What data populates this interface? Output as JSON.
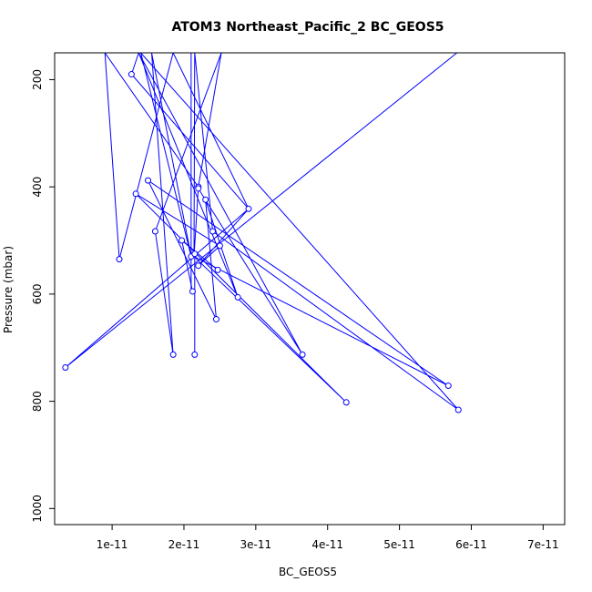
{
  "chart_data": {
    "type": "line",
    "title": "ATOM3 Northeast_Pacific_2 BC_GEOS5",
    "xlabel": "BC_GEOS5",
    "ylabel": "Pressure (mbar)",
    "xlim": [
      2e-12,
      7.3e-11
    ],
    "ylim": [
      1030,
      150
    ],
    "y_reversed": true,
    "grid": false,
    "color": "#0000ff",
    "x_ticks": [
      {
        "value": 1e-11,
        "label": "1e-11"
      },
      {
        "value": 2e-11,
        "label": "2e-11"
      },
      {
        "value": 3e-11,
        "label": "3e-11"
      },
      {
        "value": 4e-11,
        "label": "4e-11"
      },
      {
        "value": 5e-11,
        "label": "5e-11"
      },
      {
        "value": 6e-11,
        "label": "6e-11"
      },
      {
        "value": 7e-11,
        "label": "7e-11"
      }
    ],
    "y_ticks": [
      {
        "value": 200,
        "label": "200"
      },
      {
        "value": 400,
        "label": "400"
      },
      {
        "value": 600,
        "label": "600"
      },
      {
        "value": 800,
        "label": "800"
      },
      {
        "value": 1000,
        "label": "1000"
      }
    ],
    "points": [
      {
        "x": 1.27e-11,
        "y": 190
      },
      {
        "x": 2.9e-11,
        "y": 441
      },
      {
        "x": 1.1e-11,
        "y": 535
      },
      {
        "x": 2.2e-11,
        "y": 400
      },
      {
        "x": 3.65e-11,
        "y": 713
      },
      {
        "x": 1.6e-11,
        "y": 483
      },
      {
        "x": 1.85e-11,
        "y": 713
      },
      {
        "x": 2.1e-11,
        "y": 530
      },
      {
        "x": 5.82e-11,
        "y": 816
      },
      {
        "x": 2.4e-11,
        "y": 483
      },
      {
        "x": 5.68e-11,
        "y": 771
      },
      {
        "x": 1.5e-11,
        "y": 388
      },
      {
        "x": 2.45e-11,
        "y": 647
      },
      {
        "x": 2.3e-11,
        "y": 424
      },
      {
        "x": 2.75e-11,
        "y": 606
      },
      {
        "x": 2.2e-11,
        "y": 403
      },
      {
        "x": 4.26e-11,
        "y": 802
      },
      {
        "x": 1.33e-11,
        "y": 413
      },
      {
        "x": 2.5e-11,
        "y": 510
      },
      {
        "x": 2.2e-11,
        "y": 547
      },
      {
        "x": 3.5e-12,
        "y": 737
      },
      {
        "x": 2.15e-11,
        "y": 713
      },
      {
        "x": 2.12e-11,
        "y": 595
      },
      {
        "x": 2.47e-11,
        "y": 555
      },
      {
        "x": 1.97e-11,
        "y": 500
      },
      {
        "x": 2.15e-11,
        "y": 525
      }
    ],
    "path": [
      [
        1.37e-11,
        150
      ],
      [
        1.27e-11,
        190
      ],
      [
        2.9e-11,
        441
      ],
      [
        1.85e-11,
        150
      ],
      [
        1.1e-11,
        535
      ],
      [
        9e-12,
        150
      ],
      [
        2.2e-11,
        400
      ],
      [
        2.52e-11,
        150
      ],
      [
        1.6e-11,
        483
      ],
      [
        1.85e-11,
        713
      ],
      [
        1.55e-11,
        150
      ],
      [
        2.1e-11,
        530
      ],
      [
        1.4e-11,
        150
      ],
      [
        5.82e-11,
        816
      ],
      [
        2.4e-11,
        483
      ],
      [
        2.15e-11,
        150
      ],
      [
        2.14e-11,
        530
      ],
      [
        5.68e-11,
        771
      ],
      [
        1.5e-11,
        388
      ],
      [
        2.45e-11,
        647
      ],
      [
        2.3e-11,
        424
      ],
      [
        2.75e-11,
        606
      ],
      [
        1.37e-11,
        150
      ],
      [
        3.65e-11,
        713
      ],
      [
        2.2e-11,
        403
      ],
      [
        2.14e-11,
        530
      ],
      [
        4.26e-11,
        802
      ],
      [
        1.33e-11,
        413
      ],
      [
        2.5e-11,
        510
      ],
      [
        2.2e-11,
        547
      ],
      [
        2.9e-11,
        441
      ],
      [
        3.5e-12,
        737
      ],
      [
        5.8e-11,
        150
      ]
    ],
    "extra_segments": [
      [
        [
          2.1e-11,
          150
        ],
        [
          2.1e-11,
          595
        ]
      ],
      [
        [
          2.15e-11,
          713
        ],
        [
          2.15e-11,
          525
        ]
      ],
      [
        [
          1.97e-11,
          500
        ],
        [
          2.47e-11,
          555
        ]
      ],
      [
        [
          2.12e-11,
          595
        ],
        [
          1.97e-11,
          500
        ]
      ]
    ]
  }
}
